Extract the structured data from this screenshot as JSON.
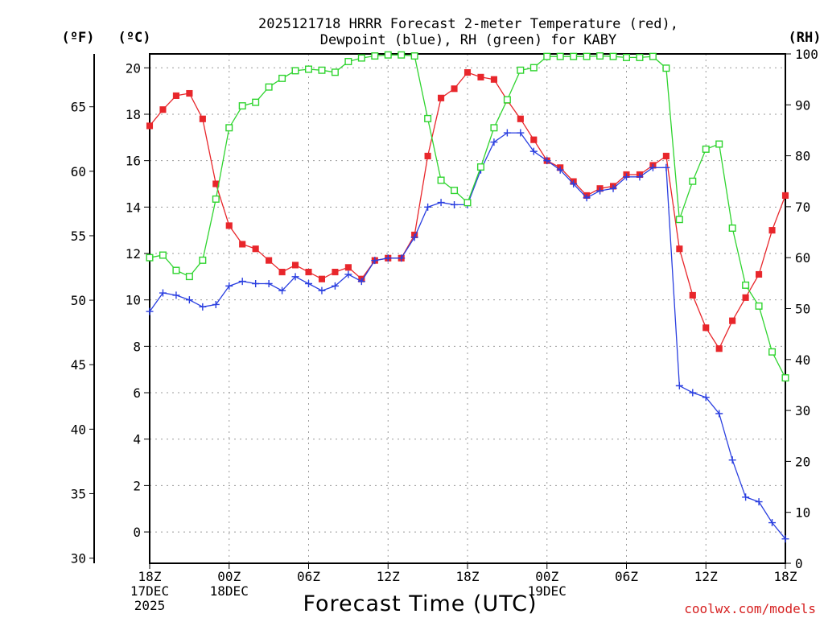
{
  "chart_data": {
    "type": "line",
    "title_line1": "2025121718 HRRR Forecast 2-meter Temperature (red),",
    "title_line2": "Dewpoint (blue), RH (green) for KABY",
    "xlabel": "Forecast Time (UTC)",
    "credit": "coolwx.com/models",
    "left_unit_f": "(ºF)",
    "left_unit_c": "(ºC)",
    "right_unit": "(RH)",
    "x_range_hours": [
      0,
      48
    ],
    "x_ticks": [
      {
        "hour": 0,
        "lines": [
          "18Z",
          "17DEC",
          "2025"
        ]
      },
      {
        "hour": 6,
        "lines": [
          "00Z",
          "18DEC"
        ]
      },
      {
        "hour": 12,
        "lines": [
          "06Z"
        ]
      },
      {
        "hour": 18,
        "lines": [
          "12Z"
        ]
      },
      {
        "hour": 24,
        "lines": [
          "18Z"
        ]
      },
      {
        "hour": 30,
        "lines": [
          "00Z",
          "19DEC"
        ]
      },
      {
        "hour": 36,
        "lines": [
          "06Z"
        ]
      },
      {
        "hour": 42,
        "lines": [
          "12Z"
        ]
      },
      {
        "hour": 48,
        "lines": [
          "18Z"
        ]
      }
    ],
    "celsius_axis": {
      "range": [
        -1.35,
        20.6
      ],
      "ticks": [
        0,
        2,
        4,
        6,
        8,
        10,
        12,
        14,
        16,
        18,
        20
      ]
    },
    "fahrenheit_axis": {
      "range": [
        29.6,
        69.1
      ],
      "ticks": [
        30,
        35,
        40,
        45,
        50,
        55,
        60,
        65
      ]
    },
    "rh_axis": {
      "range": [
        0,
        100
      ],
      "ticks": [
        0,
        10,
        20,
        30,
        40,
        50,
        60,
        70,
        80,
        90,
        100
      ]
    },
    "series": [
      {
        "name": "2-meter Temperature",
        "unit": "C",
        "color": "#e8262b",
        "marker": "filled-square",
        "values": [
          17.5,
          18.2,
          18.8,
          18.9,
          17.8,
          15.0,
          13.2,
          12.4,
          12.2,
          11.7,
          11.2,
          11.5,
          11.2,
          10.9,
          11.2,
          11.4,
          10.9,
          11.7,
          11.8,
          11.8,
          12.8,
          16.2,
          18.7,
          19.1,
          19.8,
          19.6,
          19.5,
          18.6,
          17.8,
          16.9,
          16.0,
          15.7,
          15.1,
          14.5,
          14.8,
          14.9,
          15.4,
          15.4,
          15.8,
          16.2,
          12.2,
          10.2,
          8.8,
          7.9,
          9.1,
          10.1,
          11.1,
          13.0,
          14.5
        ]
      },
      {
        "name": "Dewpoint",
        "unit": "C",
        "color": "#2a3fe0",
        "marker": "plus",
        "values": [
          9.5,
          10.3,
          10.2,
          10.0,
          9.7,
          9.8,
          10.6,
          10.8,
          10.7,
          10.7,
          10.4,
          11.0,
          10.7,
          10.4,
          10.6,
          11.1,
          10.8,
          11.7,
          11.8,
          11.8,
          12.7,
          14.0,
          14.2,
          14.1,
          14.1,
          15.6,
          16.8,
          17.2,
          17.2,
          16.4,
          16.0,
          15.6,
          15.0,
          14.4,
          14.7,
          14.8,
          15.3,
          15.3,
          15.7,
          15.7,
          6.3,
          6.0,
          5.8,
          5.1,
          3.1,
          1.5,
          1.3,
          0.4,
          -0.3
        ]
      },
      {
        "name": "RH",
        "unit": "%",
        "color": "#2fd42f",
        "marker": "open-square",
        "values": [
          60,
          60.5,
          57.5,
          56.3,
          59.5,
          71.5,
          85.5,
          89.8,
          90.5,
          93.5,
          95.2,
          96.7,
          97,
          96.8,
          96.4,
          98.5,
          99.2,
          99.6,
          99.8,
          99.8,
          99.6,
          87.3,
          75.2,
          73.2,
          70.8,
          77.8,
          85.5,
          91,
          96.8,
          97.3,
          99.5,
          99.5,
          99.5,
          99.5,
          99.6,
          99.5,
          99.3,
          99.3,
          99.5,
          97.2,
          67.5,
          75,
          81.3,
          82.3,
          65.8,
          54.6,
          50.5,
          41.5,
          36.4
        ]
      }
    ]
  }
}
